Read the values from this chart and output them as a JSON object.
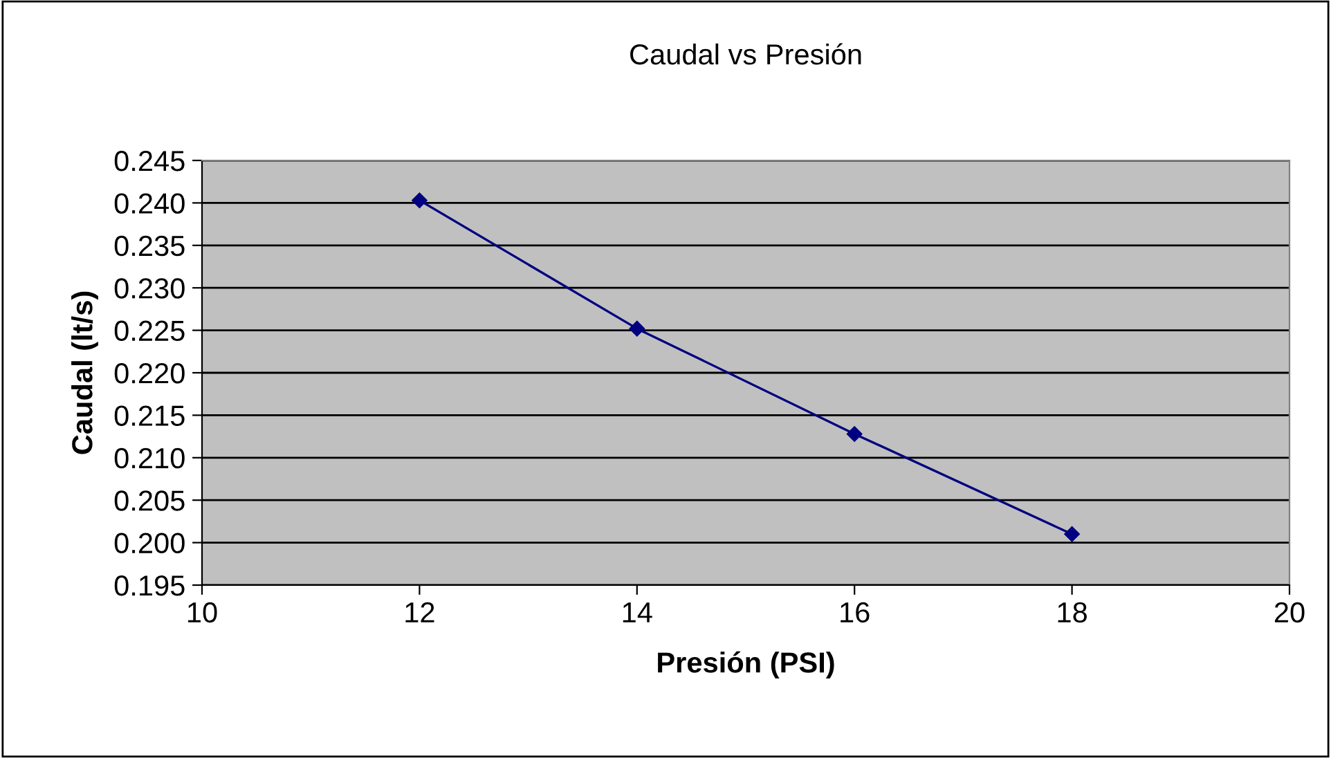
{
  "chart_data": {
    "type": "line",
    "title": "Caudal vs Presión",
    "xlabel": "Presión (PSI)",
    "ylabel": "Caudal (lt/s)",
    "x": [
      12,
      14,
      16,
      18
    ],
    "series": [
      {
        "color": "#000080",
        "values": [
          0.2403,
          0.2252,
          0.2128,
          0.201
        ]
      }
    ],
    "xlim": [
      10,
      20
    ],
    "xticks": [
      10,
      12,
      14,
      16,
      18,
      20
    ],
    "ylim": [
      0.195,
      0.245
    ],
    "yticks": [
      {
        "value": 0.195,
        "label": "0.195"
      },
      {
        "value": 0.2,
        "label": "0.200"
      },
      {
        "value": 0.205,
        "label": "0.205"
      },
      {
        "value": 0.21,
        "label": "0.210"
      },
      {
        "value": 0.215,
        "label": "0.215"
      },
      {
        "value": 0.22,
        "label": "0.220"
      },
      {
        "value": 0.225,
        "label": "0.225"
      },
      {
        "value": 0.23,
        "label": "0.230"
      },
      {
        "value": 0.235,
        "label": "0.235"
      },
      {
        "value": 0.24,
        "label": "0.240"
      },
      {
        "value": 0.245,
        "label": "0.245"
      }
    ],
    "grid": "y",
    "marker": "diamond",
    "line_style": "solid"
  }
}
